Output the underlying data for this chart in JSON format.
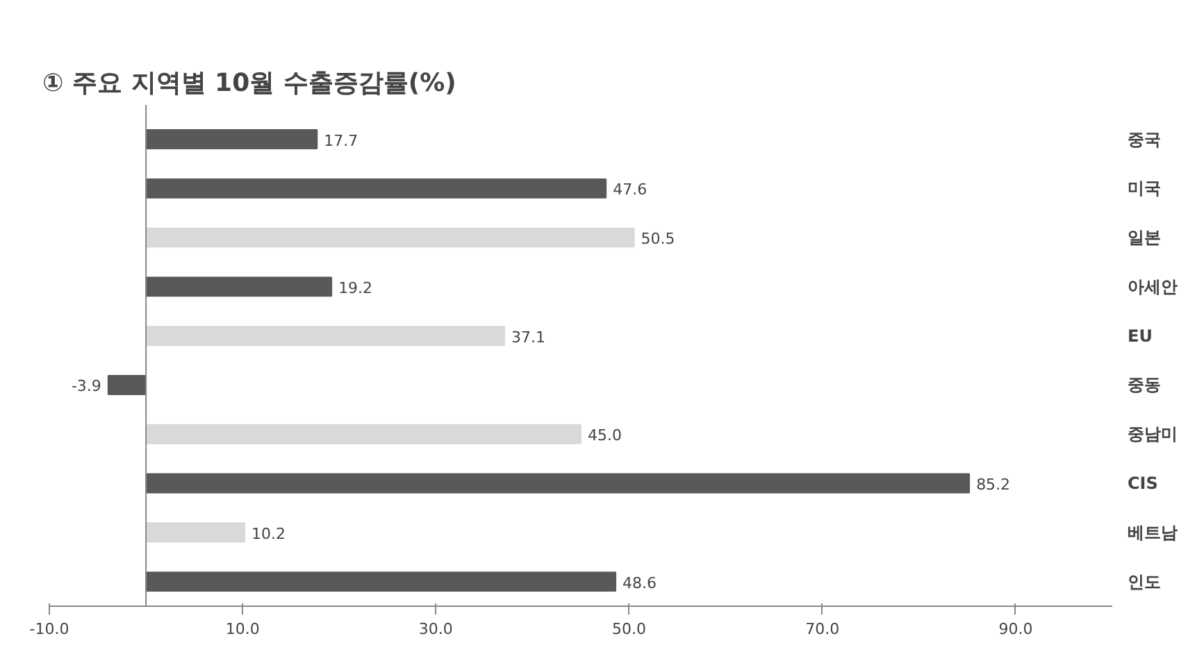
{
  "chart_data": {
    "type": "bar",
    "orientation": "horizontal",
    "title": "① 주요 지역별 10월 수출증감률(%)",
    "categories": [
      "중국",
      "미국",
      "일본",
      "아세안",
      "EU",
      "중동",
      "중남미",
      "CIS",
      "베트남",
      "인도"
    ],
    "values": [
      17.7,
      47.6,
      50.5,
      19.2,
      37.1,
      -3.9,
      45.0,
      85.2,
      10.2,
      48.6
    ],
    "value_labels": [
      "17.7",
      "47.6",
      "50.5",
      "19.2",
      "37.1",
      "-3.9",
      "45.0",
      "85.2",
      "10.2",
      "48.6"
    ],
    "colors": [
      "#595959",
      "#595959",
      "#d9d9d9",
      "#595959",
      "#d9d9d9",
      "#595959",
      "#d9d9d9",
      "#595959",
      "#d9d9d9",
      "#595959"
    ],
    "xlim": [
      -10,
      100
    ],
    "xticks": [
      {
        "value": -10,
        "label": "-10.0"
      },
      {
        "value": 10,
        "label": "10.0"
      },
      {
        "value": 30,
        "label": "30.0"
      },
      {
        "value": 50,
        "label": "50.0"
      },
      {
        "value": 70,
        "label": "70.0"
      },
      {
        "value": 90,
        "label": "90.0"
      }
    ],
    "grid": false
  }
}
